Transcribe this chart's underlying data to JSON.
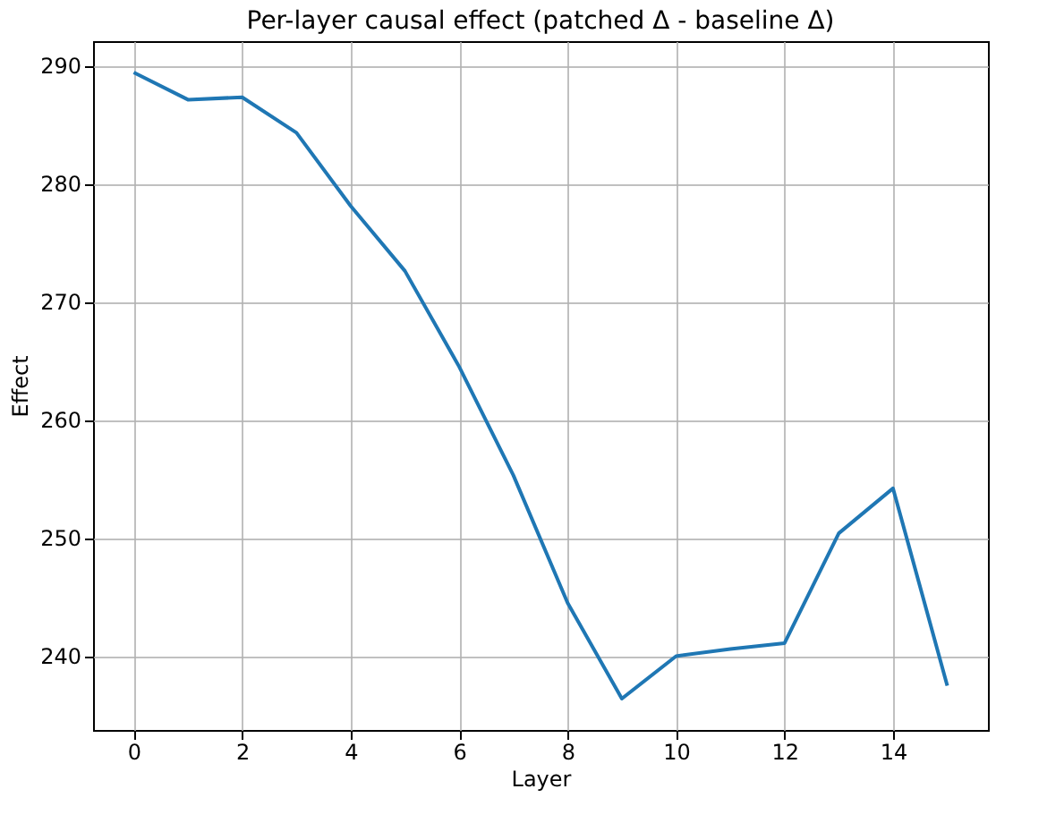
{
  "chart_data": {
    "type": "line",
    "title": "Per-layer causal effect (patched Δ - baseline Δ)",
    "xlabel": "Layer",
    "ylabel": "Effect",
    "x": [
      0,
      1,
      2,
      3,
      4,
      5,
      6,
      7,
      8,
      9,
      10,
      11,
      12,
      13,
      14,
      15
    ],
    "series": [
      {
        "color": "#1f77b4",
        "values": [
          289.4,
          287.1,
          287.3,
          284.3,
          278.1,
          272.6,
          264.5,
          255.3,
          244.5,
          236.4,
          240.0,
          240.6,
          241.1,
          250.4,
          254.2,
          237.5
        ]
      }
    ],
    "xlim": [
      -0.75,
      15.75
    ],
    "xticks": [
      0,
      2,
      4,
      6,
      8,
      10,
      12,
      14
    ],
    "ylim": [
      233.75,
      292.05
    ],
    "yticks": [
      240,
      250,
      260,
      270,
      280,
      290
    ],
    "grid": true,
    "marker": "none",
    "line_style": "solid"
  }
}
